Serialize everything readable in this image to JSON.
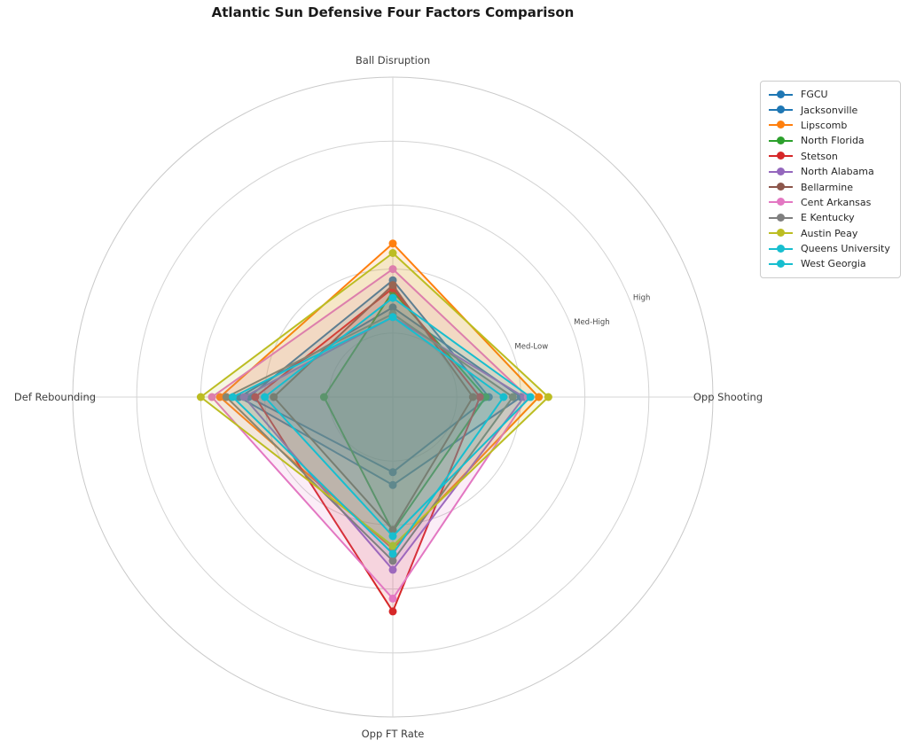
{
  "chart": {
    "title": "Atlantic Sun Defensive Four Factors Comparison"
  },
  "chart_data": {
    "type": "radar",
    "title": "Atlantic Sun Defensive Four Factors Comparison",
    "axes": [
      "Ball Disruption",
      "Opp Shooting",
      "Opp FT Rate",
      "Def Rebounding"
    ],
    "axis_positions": [
      "top",
      "right",
      "bottom",
      "left"
    ],
    "rlim": [
      0,
      1
    ],
    "grid_values": [
      0.2,
      0.4,
      0.6,
      0.8,
      1.0
    ],
    "radial_ticks": [
      {
        "label": "Med-Low",
        "value": 0.4
      },
      {
        "label": "Med-High",
        "value": 0.6
      },
      {
        "label": "High",
        "value": 0.8
      }
    ],
    "tick_ray_angle_deg": 22.5,
    "legend_position": "upper right",
    "grid_on": true,
    "series": [
      {
        "name": "FGCU",
        "color": "#1f77b4",
        "values": [
          0.365,
          0.3,
          0.235,
          0.45
        ]
      },
      {
        "name": "Jacksonville",
        "color": "#1f77b4",
        "values": [
          0.28,
          0.4,
          0.275,
          0.48
        ]
      },
      {
        "name": "Lipscomb",
        "color": "#ff7f0e",
        "values": [
          0.48,
          0.456,
          0.475,
          0.54
        ]
      },
      {
        "name": "North Florida",
        "color": "#2ca02c",
        "values": [
          0.33,
          0.29,
          0.42,
          0.215
        ]
      },
      {
        "name": "Stetson",
        "color": "#d62728",
        "values": [
          0.34,
          0.272,
          0.67,
          0.43
        ]
      },
      {
        "name": "North Alabama",
        "color": "#9467bd",
        "values": [
          0.25,
          0.41,
          0.54,
          0.465
        ]
      },
      {
        "name": "Bellarmine",
        "color": "#8c564b",
        "values": [
          0.35,
          0.25,
          0.415,
          0.372
        ]
      },
      {
        "name": "Cent Arkansas",
        "color": "#e377c2",
        "values": [
          0.4,
          0.422,
          0.63,
          0.565
        ]
      },
      {
        "name": "E Kentucky",
        "color": "#7f7f7f",
        "values": [
          0.26,
          0.375,
          0.512,
          0.52
        ]
      },
      {
        "name": "Austin Peay",
        "color": "#bcbd22",
        "values": [
          0.45,
          0.486,
          0.465,
          0.6
        ]
      },
      {
        "name": "Queens University",
        "color": "#17becf",
        "values": [
          0.31,
          0.43,
          0.435,
          0.4
        ]
      },
      {
        "name": "West Georgia",
        "color": "#17becf",
        "values": [
          0.25,
          0.346,
          0.49,
          0.5
        ]
      }
    ],
    "style": {
      "grid_color": "#d4d4d4",
      "spine_color": "#c9c9c9",
      "fill_opacity": 0.13,
      "line_width": 2,
      "marker_radius": 4.5,
      "background": "#ffffff"
    }
  }
}
